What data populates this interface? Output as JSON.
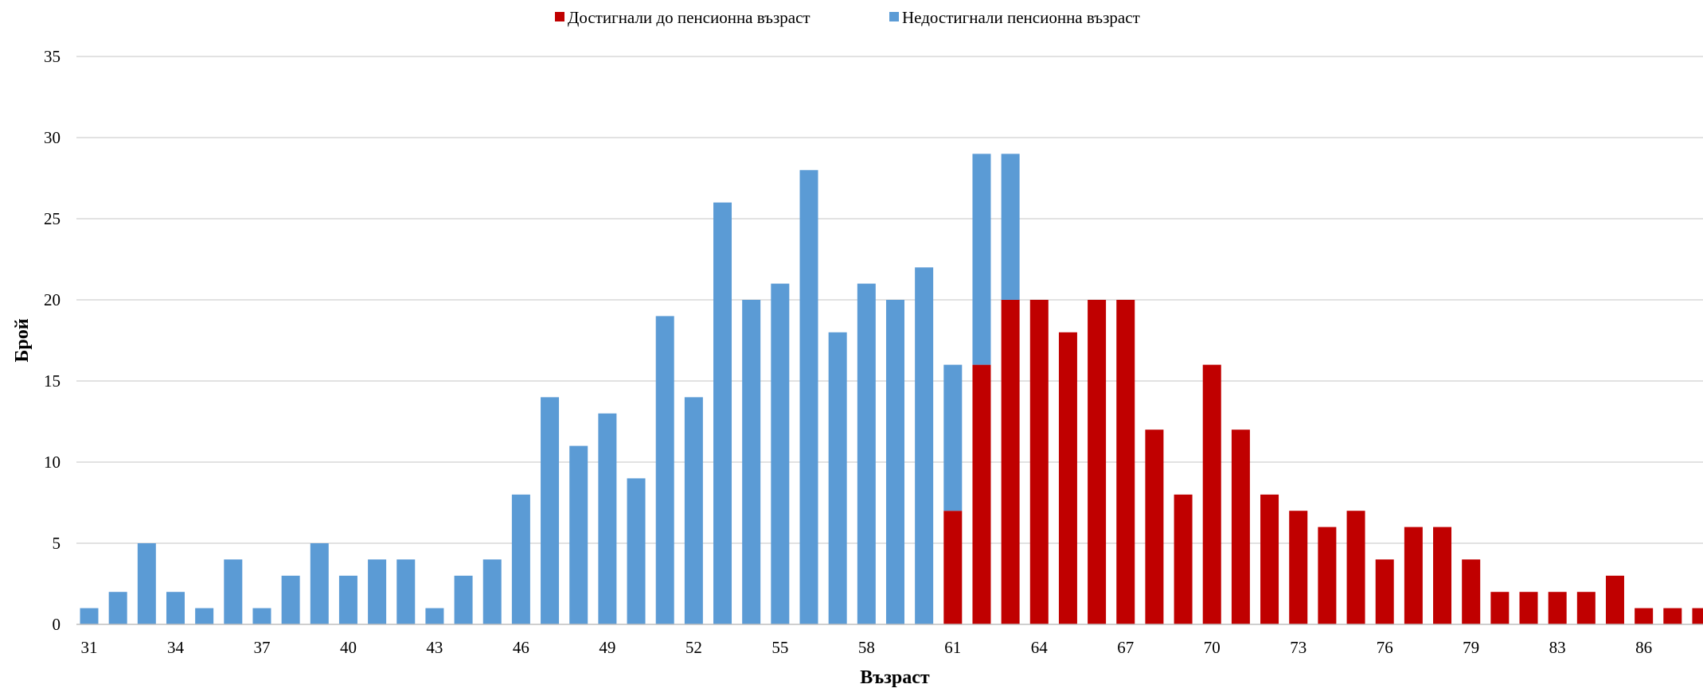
{
  "chart_data": {
    "type": "bar",
    "stacked": true,
    "title": "",
    "xlabel": "Възраст",
    "ylabel": "Брой",
    "ylim": [
      0,
      35
    ],
    "yticks": [
      0,
      5,
      10,
      15,
      20,
      25,
      30,
      35
    ],
    "grid": true,
    "legend_position": "top",
    "categories": [
      "31",
      "32",
      "33",
      "34",
      "35",
      "36",
      "37",
      "38",
      "39",
      "40",
      "41",
      "42",
      "43",
      "44",
      "45",
      "46",
      "47",
      "48",
      "49",
      "50",
      "51",
      "52",
      "53",
      "54",
      "55",
      "56",
      "57",
      "58",
      "59",
      "60",
      "61",
      "62",
      "63",
      "64",
      "65",
      "66",
      "67",
      "68",
      "69",
      "70",
      "71",
      "72",
      "73",
      "74",
      "75",
      "76",
      "77",
      "78",
      "79",
      "80",
      "81",
      "83",
      "84",
      "85",
      "86",
      "87",
      "88"
    ],
    "xtick_labels": [
      "31",
      "34",
      "37",
      "40",
      "43",
      "46",
      "49",
      "52",
      "55",
      "58",
      "61",
      "64",
      "67",
      "70",
      "73",
      "76",
      "79",
      "83",
      "86"
    ],
    "series": [
      {
        "name": "Достигнали до пенсионна възраст",
        "color": "#c00000",
        "values": [
          0,
          0,
          0,
          0,
          0,
          0,
          0,
          0,
          0,
          0,
          0,
          0,
          0,
          0,
          0,
          0,
          0,
          0,
          0,
          0,
          0,
          0,
          0,
          0,
          0,
          0,
          0,
          0,
          0,
          0,
          7,
          16,
          20,
          20,
          18,
          20,
          20,
          12,
          8,
          16,
          12,
          8,
          7,
          6,
          7,
          4,
          6,
          6,
          4,
          2,
          2,
          2,
          2,
          3,
          1,
          1,
          1
        ]
      },
      {
        "name": "Недостигнали пенсионна възраст",
        "color": "#5b9bd5",
        "values": [
          1,
          2,
          5,
          2,
          1,
          4,
          1,
          3,
          5,
          3,
          4,
          4,
          1,
          3,
          4,
          8,
          14,
          11,
          13,
          9,
          19,
          14,
          26,
          20,
          21,
          28,
          18,
          21,
          20,
          22,
          9,
          13,
          9,
          0,
          0,
          0,
          0,
          0,
          0,
          0,
          0,
          0,
          0,
          0,
          0,
          0,
          0,
          0,
          0,
          0,
          0,
          0,
          0,
          0,
          0,
          0,
          0
        ]
      }
    ]
  }
}
